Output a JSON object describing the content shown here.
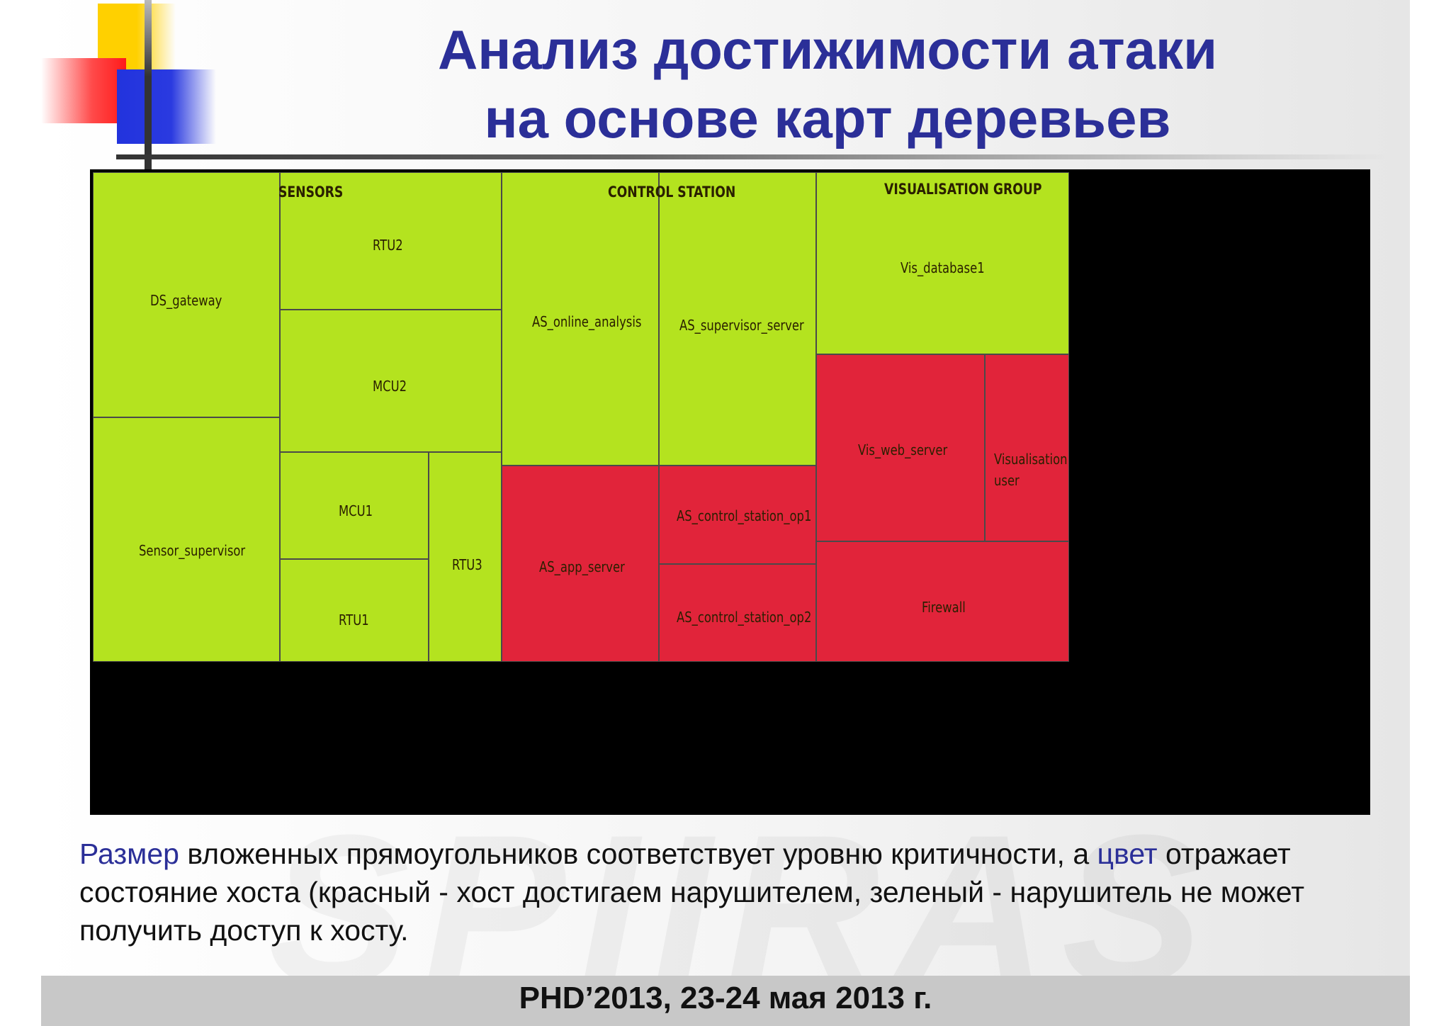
{
  "title_lines": [
    "Анализ достижимости атаки",
    "на основе карт деревьев"
  ],
  "colors": {
    "reachable": "#e1243a",
    "unreachable": "#b4e31f",
    "title": "#2b2f98"
  },
  "chart_data": {
    "type": "treemap",
    "legend": {
      "red": "хост достигаем нарушителем",
      "green": "нарушитель не может получить доступ к хосту"
    },
    "groups": [
      {
        "name": "SENSORS",
        "hosts": [
          {
            "name": "DS_gateway",
            "state": "green"
          },
          {
            "name": "Sensor_supervisor",
            "state": "green"
          },
          {
            "name": "RTU2",
            "state": "green"
          },
          {
            "name": "MCU2",
            "state": "green"
          },
          {
            "name": "MCU1",
            "state": "green"
          },
          {
            "name": "RTU1",
            "state": "green"
          },
          {
            "name": "RTU3",
            "state": "green"
          }
        ]
      },
      {
        "name": "CONTROL STATION",
        "hosts": [
          {
            "name": "AS_online_analysis",
            "state": "green"
          },
          {
            "name": "AS_supervisor_server",
            "state": "green"
          },
          {
            "name": "AS_app_server",
            "state": "red"
          },
          {
            "name": "AS_control_station_op1",
            "state": "red"
          },
          {
            "name": "AS_control_station_op2",
            "state": "red"
          }
        ]
      },
      {
        "name": "VISUALISATION GROUP",
        "hosts": [
          {
            "name": "Vis_database1",
            "state": "green"
          },
          {
            "name": "Vis_web_server",
            "state": "red"
          },
          {
            "name": "Visualisation user",
            "state": "red"
          },
          {
            "name": "Firewall",
            "state": "red"
          }
        ]
      }
    ]
  },
  "caption": {
    "w1": "Размер",
    "t1": " вложенных прямоугольников соответствует уровню критичности, а ",
    "w2": "цвет",
    "t2": " отражает состояние хоста (красный - хост достигаем нарушителем, зеленый - нарушитель не может получить доступ к хосту."
  },
  "footer": "PHD’2013, 23-24 мая 2013 г."
}
